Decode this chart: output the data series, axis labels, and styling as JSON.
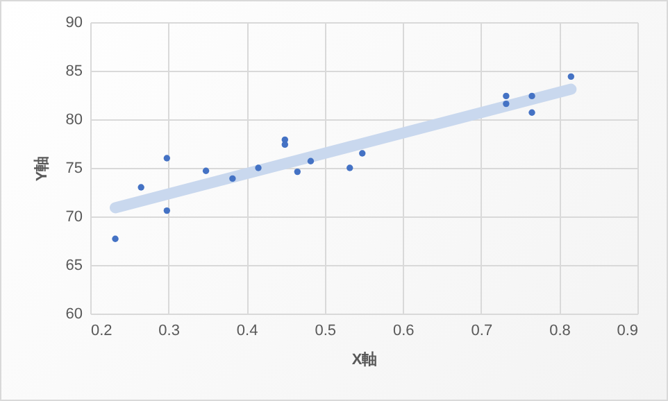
{
  "chart_data": {
    "type": "scatter",
    "xlabel": "X軸",
    "ylabel": "Y軸",
    "xlim": [
      0.2,
      0.9
    ],
    "xticks": [
      0.2,
      0.3,
      0.4,
      0.5,
      0.6,
      0.7,
      0.8,
      0.9
    ],
    "ylim": [
      60,
      90
    ],
    "yticks": [
      60,
      65,
      70,
      75,
      80,
      85,
      90
    ],
    "grid": true,
    "series": [
      {
        "type": "line",
        "color": "#c9d8ee",
        "x": [
          0.232,
          0.815
        ],
        "values": [
          70.9,
          83.1
        ]
      },
      {
        "type": "scatter",
        "marker": "circle",
        "color": "#4472c4",
        "x": [
          0.232,
          0.265,
          0.298,
          0.298,
          0.348,
          0.382,
          0.415,
          0.449,
          0.449,
          0.465,
          0.482,
          0.532,
          0.548,
          0.732,
          0.732,
          0.765,
          0.765,
          0.815
        ],
        "values": [
          67.7,
          73.0,
          76.0,
          70.6,
          74.7,
          73.9,
          75.0,
          77.9,
          77.4,
          74.6,
          75.7,
          75.0,
          76.5,
          82.4,
          81.6,
          82.4,
          80.7,
          84.4
        ]
      }
    ]
  }
}
